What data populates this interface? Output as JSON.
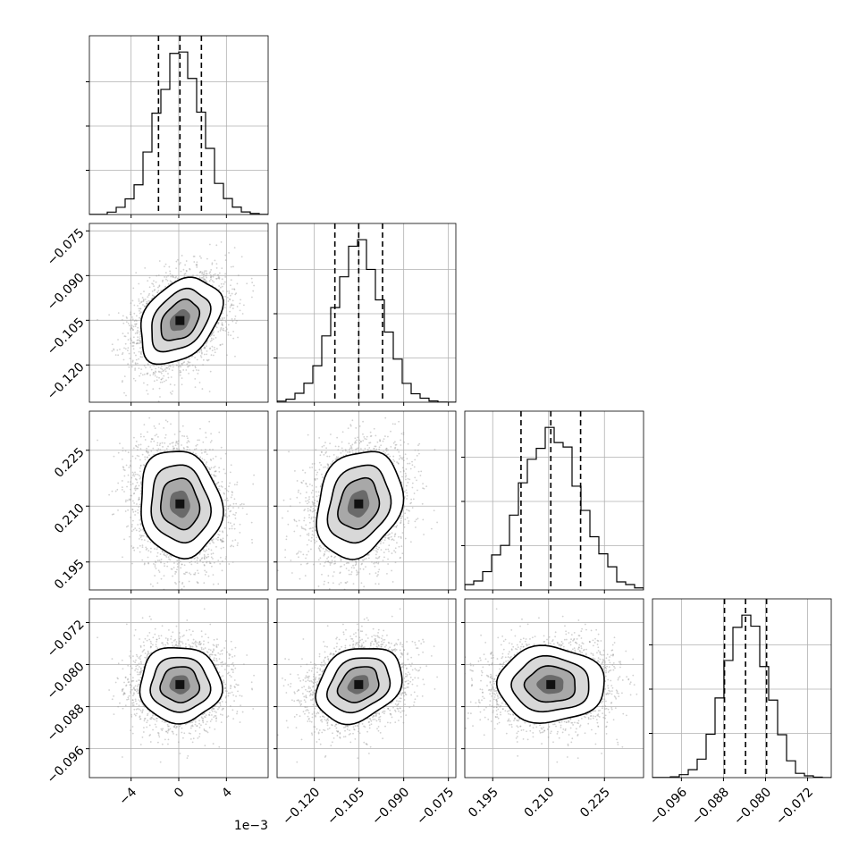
{
  "chart_data": {
    "type": "corner",
    "parameters": [
      {
        "range": [
          -0.0075,
          0.0075
        ],
        "ticks": [
          -0.004,
          0.0,
          0.004
        ],
        "tick_labels": [
          "−4",
          "0",
          "4"
        ],
        "offset_label": "1e−3",
        "mean": 0.0001,
        "std": 0.0019,
        "quantiles": [
          -0.0017,
          0.0001,
          0.0019
        ]
      },
      {
        "range": [
          -0.1325,
          -0.0725
        ],
        "ticks": [
          -0.12,
          -0.105,
          -0.09,
          -0.075
        ],
        "tick_labels": [
          "−0.120",
          "−0.105",
          "−0.090",
          "−0.075"
        ],
        "mean": -0.1051,
        "std": 0.008,
        "quantiles": [
          -0.1131,
          -0.1051,
          -0.0971
        ]
      },
      {
        "range": [
          0.1875,
          0.2355
        ],
        "ticks": [
          0.195,
          0.21,
          0.225
        ],
        "tick_labels": [
          "0.195",
          "0.210",
          "0.225"
        ],
        "mean": 0.2106,
        "std": 0.008,
        "quantiles": [
          0.2026,
          0.2106,
          0.2186
        ]
      },
      {
        "range": [
          -0.1015,
          -0.0675
        ],
        "ticks": [
          -0.096,
          -0.088,
          -0.08,
          -0.072
        ],
        "tick_labels": [
          "−0.096",
          "−0.088",
          "−0.080",
          "−0.072"
        ],
        "mean": -0.0838,
        "std": 0.004,
        "quantiles": [
          -0.0878,
          -0.0838,
          -0.0798
        ]
      }
    ],
    "correlations": [
      [
        1.0,
        0.35,
        -0.1,
        0.0
      ],
      [
        0.35,
        1.0,
        0.2,
        0.25
      ],
      [
        -0.1,
        0.2,
        1.0,
        0.0
      ],
      [
        0.0,
        0.25,
        0.0,
        1.0
      ]
    ],
    "histogram_bins": 20,
    "grid": true,
    "colors": {
      "ink": "#000000",
      "grid": "#b0b0b0",
      "scatter": "#9a9a9a"
    }
  }
}
